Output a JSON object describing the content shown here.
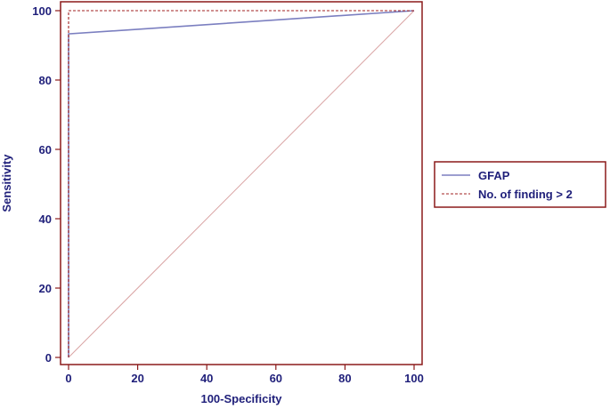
{
  "chart_data": {
    "type": "line",
    "title": "",
    "xlabel": "100-Specificity",
    "ylabel": "Sensitivity",
    "xlim": [
      0,
      100
    ],
    "ylim": [
      0,
      100
    ],
    "xticks": [
      0,
      20,
      40,
      60,
      80,
      100
    ],
    "yticks": [
      0,
      20,
      40,
      60,
      80,
      100
    ],
    "grid": false,
    "legend_position": "right",
    "reference_line": {
      "x": [
        0,
        100
      ],
      "y": [
        0,
        100
      ],
      "color": "#d9a3a3"
    },
    "series": [
      {
        "name": "GFAP",
        "style": "solid",
        "color": "#7b7fc0",
        "x": [
          0,
          0,
          100
        ],
        "y": [
          0,
          93.3,
          100
        ]
      },
      {
        "name": "No. of finding > 2",
        "style": "dashed",
        "color": "#a02020",
        "x": [
          0,
          0,
          100
        ],
        "y": [
          0,
          100,
          100
        ]
      }
    ]
  },
  "colors": {
    "frame": "#8b1a1a",
    "text": "#1f1f7a"
  }
}
